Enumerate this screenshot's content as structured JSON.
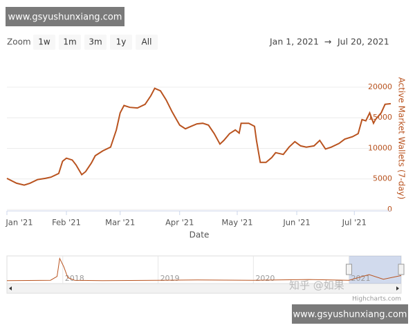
{
  "watermark_top": "www.gsyushunxiang.com",
  "watermark_bottom": "www.gsyushunxiang.com",
  "zoom_label": "Zoom",
  "zoom_buttons": [
    "1w",
    "1m",
    "3m",
    "1y",
    "All"
  ],
  "range_from": "Jan 1, 2021",
  "range_arrow": "→",
  "range_to": "Jul 20, 2021",
  "zhihu_watermark": "知乎 @如果",
  "credits": "Highcharts.com",
  "chart_data": {
    "type": "line",
    "x_label": "Date",
    "y_label": "Active Market Wallets (7-day)",
    "x": [
      "2021-01-01",
      "2021-01-06",
      "2021-01-10",
      "2021-01-13",
      "2021-01-17",
      "2021-01-21",
      "2021-01-24",
      "2021-01-28",
      "2021-01-30",
      "2021-02-01",
      "2021-02-04",
      "2021-02-06",
      "2021-02-09",
      "2021-02-11",
      "2021-02-14",
      "2021-02-16",
      "2021-02-20",
      "2021-02-24",
      "2021-02-27",
      "2021-03-01",
      "2021-03-03",
      "2021-03-06",
      "2021-03-10",
      "2021-03-14",
      "2021-03-17",
      "2021-03-19",
      "2021-03-22",
      "2021-03-25",
      "2021-03-28",
      "2021-03-30",
      "2021-04-01",
      "2021-04-04",
      "2021-04-07",
      "2021-04-10",
      "2021-04-13",
      "2021-04-16",
      "2021-04-19",
      "2021-04-22",
      "2021-04-24",
      "2021-04-27",
      "2021-04-30",
      "2021-05-02",
      "2021-05-03",
      "2021-05-07",
      "2021-05-10",
      "2021-05-11",
      "2021-05-13",
      "2021-05-16",
      "2021-05-19",
      "2021-05-21",
      "2021-05-25",
      "2021-05-28",
      "2021-05-31",
      "2021-06-03",
      "2021-06-06",
      "2021-06-10",
      "2021-06-13",
      "2021-06-16",
      "2021-06-19",
      "2021-06-23",
      "2021-06-26",
      "2021-06-30",
      "2021-07-03",
      "2021-07-05",
      "2021-07-07",
      "2021-07-09",
      "2021-07-11",
      "2021-07-12",
      "2021-07-15",
      "2021-07-17",
      "2021-07-20"
    ],
    "series": [
      {
        "name": "Active Market Wallets (7-day)",
        "color": "#b9531f",
        "values": [
          5100,
          4300,
          4000,
          4300,
          4900,
          5100,
          5300,
          5900,
          7900,
          8400,
          8100,
          7300,
          5700,
          6200,
          7600,
          8800,
          9600,
          10200,
          13000,
          15800,
          17000,
          16700,
          16600,
          17200,
          18600,
          19800,
          19400,
          17900,
          16000,
          14900,
          13800,
          13200,
          13600,
          14000,
          14100,
          13800,
          12400,
          10700,
          11300,
          12400,
          13000,
          12500,
          14100,
          14100,
          13600,
          11300,
          7700,
          7700,
          8500,
          9300,
          9000,
          10200,
          11100,
          10400,
          10200,
          10400,
          11300,
          9900,
          10200,
          10800,
          11500,
          11900,
          12400,
          14700,
          14500,
          15800,
          14100,
          14700,
          15800,
          17200,
          17300
        ]
      }
    ],
    "xlim": [
      "2021-01-01",
      "2021-07-20"
    ],
    "xticks": [
      {
        "value": "2021-01-01",
        "label": "Jan '21"
      },
      {
        "value": "2021-02-01",
        "label": "Feb '21"
      },
      {
        "value": "2021-03-01",
        "label": "Mar '21"
      },
      {
        "value": "2021-04-01",
        "label": "Apr '21"
      },
      {
        "value": "2021-05-01",
        "label": "May '21"
      },
      {
        "value": "2021-06-01",
        "label": "Jun '21"
      },
      {
        "value": "2021-07-01",
        "label": "Jul '21"
      }
    ],
    "ylim": [
      0,
      23500
    ],
    "yticks": [
      0,
      5000,
      10000,
      15000,
      20000
    ],
    "grid": true,
    "navigator": {
      "x": [
        "2017-06-01",
        "2017-11-15",
        "2017-12-10",
        "2017-12-20",
        "2018-01-05",
        "2018-01-20",
        "2018-02-15",
        "2018-06-01",
        "2019-01-01",
        "2019-06-01",
        "2020-01-01",
        "2020-08-01",
        "2021-01-01",
        "2021-03-19",
        "2021-05-13",
        "2021-07-20"
      ],
      "values": [
        4000,
        5000,
        15000,
        62000,
        40000,
        12000,
        5000,
        4000,
        5000,
        6000,
        5000,
        7000,
        5100,
        19800,
        7700,
        17300
      ],
      "color": "#b9531f",
      "xlim": [
        "2017-06-01",
        "2021-07-20"
      ],
      "ylim": [
        0,
        65000
      ],
      "xticks": [
        {
          "value": "2018-01-01",
          "label": "2018"
        },
        {
          "value": "2019-01-01",
          "label": "2019"
        },
        {
          "value": "2020-01-01",
          "label": "2020"
        },
        {
          "value": "2021-01-01",
          "label": "2021"
        }
      ]
    }
  }
}
